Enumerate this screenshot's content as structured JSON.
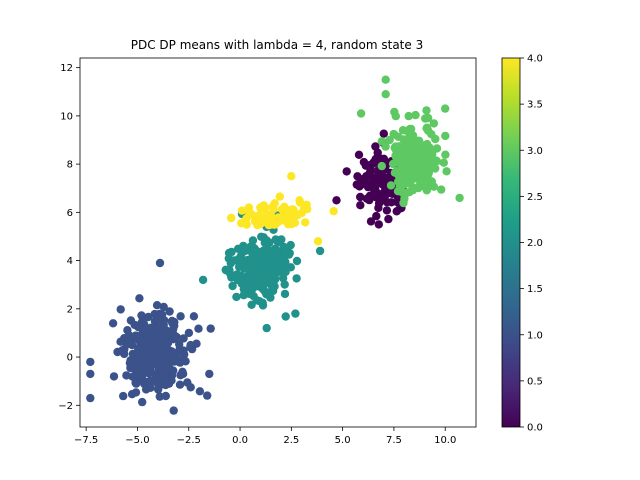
{
  "chart_data": {
    "type": "scatter",
    "title": "PDC DP means with lambda = 4, random state 3",
    "xlabel": "",
    "ylabel": "",
    "xlim": [
      -7.8,
      11.5
    ],
    "ylim": [
      -2.9,
      12.4
    ],
    "xticks": [
      -7.5,
      -5.0,
      -2.5,
      0.0,
      2.5,
      5.0,
      7.5,
      10.0
    ],
    "xtick_labels": [
      "−7.5",
      "−5.0",
      "−2.5",
      "0.0",
      "2.5",
      "5.0",
      "7.5",
      "10.0"
    ],
    "yticks": [
      -2,
      0,
      2,
      4,
      6,
      8,
      10,
      12
    ],
    "ytick_labels": [
      "−2",
      "0",
      "2",
      "4",
      "6",
      "8",
      "10",
      "12"
    ],
    "grid": false,
    "colormap": "viridis",
    "colorbar": {
      "range": [
        0.0,
        4.0
      ],
      "ticks": [
        0.0,
        0.5,
        1.0,
        1.5,
        2.0,
        2.5,
        3.0,
        3.5,
        4.0
      ],
      "tick_labels": [
        "0.0",
        "0.5",
        "1.0",
        "1.5",
        "2.0",
        "2.5",
        "3.0",
        "3.5",
        "4.0"
      ],
      "stops": [
        "#440154",
        "#482878",
        "#3e4989",
        "#31688e",
        "#26828e",
        "#1f9e89",
        "#35b779",
        "#6ece58",
        "#b5de2b",
        "#fde725"
      ]
    },
    "clusters": [
      {
        "label": 0,
        "color": "#440154",
        "center": [
          6.9,
          7.3
        ],
        "spread": [
          0.75,
          0.95
        ],
        "count": 120
      },
      {
        "label": 1,
        "color": "#3b528b",
        "center": [
          -4.2,
          0.2
        ],
        "spread": [
          1.05,
          1.05
        ],
        "count": 300
      },
      {
        "label": 2,
        "color": "#21918c",
        "center": [
          1.0,
          3.8
        ],
        "spread": [
          0.95,
          0.85
        ],
        "count": 240
      },
      {
        "label": 3,
        "color": "#5ec962",
        "center": [
          8.5,
          8.2
        ],
        "spread": [
          0.8,
          0.95
        ],
        "count": 220
      },
      {
        "label": 4,
        "color": "#fde725",
        "center": [
          1.5,
          5.6
        ],
        "spread": [
          1.0,
          0.45
        ],
        "count": 70
      }
    ],
    "extra_points": [
      {
        "label": 3,
        "x": 7.1,
        "y": 11.5
      },
      {
        "label": 3,
        "x": 7.1,
        "y": 10.9
      },
      {
        "label": 3,
        "x": 10.0,
        "y": 10.3
      },
      {
        "label": 3,
        "x": 10.7,
        "y": 6.6
      },
      {
        "label": 3,
        "x": 5.9,
        "y": 10.1
      },
      {
        "label": 4,
        "x": 2.5,
        "y": 7.5
      },
      {
        "label": 4,
        "x": 2.9,
        "y": 6.5
      },
      {
        "label": 4,
        "x": 3.8,
        "y": 4.8
      },
      {
        "label": 0,
        "x": 4.7,
        "y": 6.5
      },
      {
        "label": 0,
        "x": 5.2,
        "y": 7.7
      },
      {
        "label": 1,
        "x": -7.3,
        "y": -1.7
      },
      {
        "label": 1,
        "x": -7.3,
        "y": -0.2
      },
      {
        "label": 1,
        "x": -7.3,
        "y": -0.7
      },
      {
        "label": 1,
        "x": -3.9,
        "y": 3.9
      },
      {
        "label": 1,
        "x": -1.6,
        "y": -1.6
      },
      {
        "label": 1,
        "x": -1.5,
        "y": -0.7
      },
      {
        "label": 2,
        "x": 1.3,
        "y": 1.2
      },
      {
        "label": 2,
        "x": 2.7,
        "y": 1.8
      },
      {
        "label": 2,
        "x": -1.8,
        "y": 3.2
      },
      {
        "label": 2,
        "x": 3.9,
        "y": 4.4
      }
    ]
  }
}
